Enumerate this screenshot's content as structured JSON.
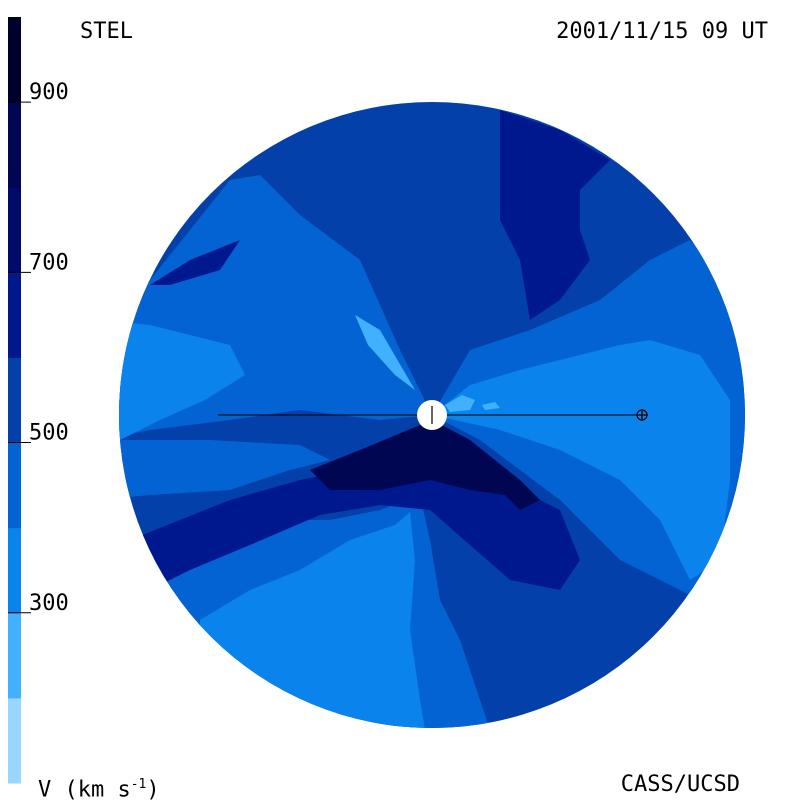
{
  "header": {
    "observatory": "STEL",
    "timestamp": "2001/11/15 09 UT"
  },
  "footer": {
    "credit": "CASS/UCSD",
    "units_prefix": "V (km s",
    "units_exp": "-1",
    "units_suffix": ")"
  },
  "colorbar": {
    "range": [
      100,
      1000
    ],
    "ticks": [
      "300",
      "500",
      "700",
      "900"
    ],
    "tick_values": [
      300,
      500,
      700,
      900
    ],
    "levels": [
      {
        "from": 100,
        "to": 200,
        "color": "#99d6ff"
      },
      {
        "from": 200,
        "to": 300,
        "color": "#40b0ff"
      },
      {
        "from": 300,
        "to": 400,
        "color": "#0a84ec"
      },
      {
        "from": 400,
        "to": 500,
        "color": "#0463d2"
      },
      {
        "from": 500,
        "to": 600,
        "color": "#0340aa"
      },
      {
        "from": 600,
        "to": 700,
        "color": "#00188d"
      },
      {
        "from": 700,
        "to": 800,
        "color": "#000a6a"
      },
      {
        "from": 800,
        "to": 900,
        "color": "#000652"
      },
      {
        "from": 900,
        "to": 1000,
        "color": "#00002c"
      }
    ]
  },
  "chart_data": {
    "type": "heatmap",
    "title": "STEL 2001/11/15 09 UT",
    "quantity": "V (km s-1)",
    "colorbar_range": [
      100,
      1000
    ],
    "colorbar_ticks": [
      300,
      500,
      700,
      900
    ],
    "sun_marker": "center",
    "earth_marker": "right of center on horizontal line"
  }
}
